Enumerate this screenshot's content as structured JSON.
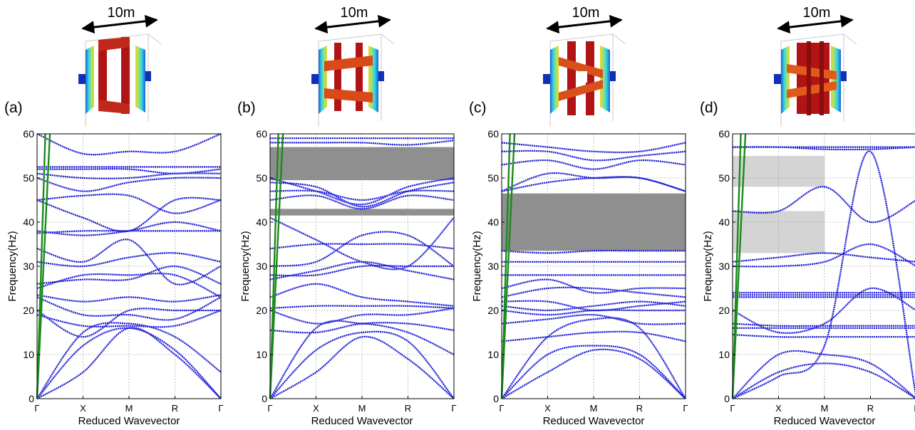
{
  "figure": {
    "scale_label": "10m",
    "frequency_axis_label": "Frequency(Hz)",
    "wavevector_axis_label": "Reduced Wavevector"
  },
  "colors": {
    "band_line": "#1f1fd6",
    "light_cone": "#1a8a1a",
    "full_gap": "#8f8f8f",
    "partial_gap": "#d4d4d4",
    "axes": "#000000",
    "grid": "#9a9a9a",
    "model_body": "#b01414",
    "model_plate_start": "#1e5fd8",
    "model_plate_end": "#f2d21c"
  },
  "chart_data": [
    {
      "panel_label": "(a)",
      "type": "line",
      "xlabel": "Reduced Wavevector",
      "ylabel": "Frequency(Hz)",
      "x_ticks": [
        "Γ",
        "X",
        "M",
        "R",
        "Γ"
      ],
      "ylim": [
        0,
        60
      ],
      "yticks": [
        0,
        10,
        20,
        30,
        40,
        50,
        60
      ],
      "grid": true,
      "light_cone": [
        {
          "x": [
            0,
            0.18
          ],
          "y": [
            0,
            60
          ]
        },
        {
          "x": [
            0,
            0.28
          ],
          "y": [
            0,
            60
          ]
        }
      ],
      "gaps": [],
      "series": [
        {
          "values": [
            0,
            6,
            16,
            10,
            0
          ]
        },
        {
          "values": [
            0,
            12,
            16,
            11,
            0
          ]
        },
        {
          "values": [
            0,
            15,
            17,
            14,
            6
          ]
        },
        {
          "values": [
            19,
            16.5,
            16.5,
            16.5,
            20
          ]
        },
        {
          "values": [
            20,
            14,
            20,
            20,
            20
          ]
        },
        {
          "values": [
            23,
            19,
            19,
            18,
            23
          ]
        },
        {
          "values": [
            23.5,
            22,
            23,
            22,
            23.5
          ]
        },
        {
          "values": [
            25,
            28,
            28,
            28,
            23
          ]
        },
        {
          "values": [
            26,
            27,
            27,
            30,
            26
          ]
        },
        {
          "values": [
            31,
            30,
            32,
            33,
            31
          ]
        },
        {
          "values": [
            34,
            31,
            36,
            26,
            30
          ]
        },
        {
          "values": [
            37.5,
            38,
            38,
            38,
            38
          ]
        },
        {
          "values": [
            38,
            37,
            38,
            40,
            38
          ]
        },
        {
          "values": [
            45,
            41,
            38,
            45,
            45
          ]
        },
        {
          "values": [
            45,
            46,
            46,
            42,
            45
          ]
        },
        {
          "values": [
            50,
            47,
            49,
            50,
            50
          ]
        },
        {
          "values": [
            51,
            50,
            50,
            51,
            51
          ]
        },
        {
          "values": [
            52,
            52,
            52,
            51,
            52
          ]
        },
        {
          "values": [
            52.5,
            52.5,
            52.5,
            52.5,
            52.5
          ]
        },
        {
          "values": [
            60,
            55.5,
            56,
            56,
            60
          ]
        }
      ]
    },
    {
      "panel_label": "(b)",
      "type": "line",
      "xlabel": "Reduced Wavevector",
      "ylabel": "Frequency(Hz)",
      "x_ticks": [
        "Γ",
        "X",
        "M",
        "R",
        "Γ"
      ],
      "ylim": [
        0,
        60
      ],
      "yticks": [
        0,
        10,
        20,
        30,
        40,
        50,
        60
      ],
      "grid": true,
      "light_cone": [
        {
          "x": [
            0,
            0.18
          ],
          "y": [
            0,
            60
          ]
        },
        {
          "x": [
            0,
            0.28
          ],
          "y": [
            0,
            60
          ]
        }
      ],
      "gaps": [
        {
          "y": [
            41.5,
            43
          ],
          "span": [
            0,
            4
          ],
          "kind": "full"
        },
        {
          "y": [
            49.5,
            57
          ],
          "span": [
            0,
            4
          ],
          "kind": "full"
        }
      ],
      "series": [
        {
          "values": [
            0,
            6,
            14,
            9,
            0
          ]
        },
        {
          "values": [
            0,
            11,
            15,
            13,
            0
          ]
        },
        {
          "values": [
            0,
            16,
            17,
            15,
            10
          ]
        },
        {
          "values": [
            15.5,
            15,
            17,
            17,
            15.5
          ]
        },
        {
          "values": [
            20,
            17,
            19,
            19,
            20.5
          ]
        },
        {
          "values": [
            20.5,
            21,
            21,
            21,
            20.5
          ]
        },
        {
          "values": [
            23,
            26,
            23,
            22,
            21
          ]
        },
        {
          "values": [
            27,
            29,
            31,
            29,
            27
          ]
        },
        {
          "values": [
            28,
            28,
            30,
            30,
            30
          ]
        },
        {
          "values": [
            30,
            31,
            37,
            37,
            30
          ]
        },
        {
          "values": [
            34,
            35,
            35,
            35,
            34
          ]
        },
        {
          "values": [
            41,
            36,
            31,
            30,
            41
          ]
        },
        {
          "values": [
            45,
            46,
            43,
            46,
            45
          ]
        },
        {
          "values": [
            47,
            47,
            45,
            47,
            47
          ]
        },
        {
          "values": [
            49,
            48,
            43.5,
            47,
            49
          ]
        },
        {
          "values": [
            50,
            47,
            44,
            48,
            50
          ]
        },
        {
          "values": [
            58,
            58,
            58,
            57.5,
            58.5
          ]
        },
        {
          "values": [
            59,
            59,
            59,
            59,
            59
          ]
        }
      ]
    },
    {
      "panel_label": "(c)",
      "type": "line",
      "xlabel": "Reduced Wavevector",
      "ylabel": "Frequency(Hz)",
      "x_ticks": [
        "Γ",
        "X",
        "M",
        "R",
        "Γ"
      ],
      "ylim": [
        0,
        60
      ],
      "yticks": [
        0,
        10,
        20,
        30,
        40,
        50,
        60
      ],
      "grid": true,
      "light_cone": [
        {
          "x": [
            0,
            0.18
          ],
          "y": [
            0,
            60
          ]
        },
        {
          "x": [
            0,
            0.28
          ],
          "y": [
            0,
            60
          ]
        }
      ],
      "gaps": [
        {
          "y": [
            33.5,
            46.5
          ],
          "span": [
            0,
            4
          ],
          "kind": "full"
        }
      ],
      "series": [
        {
          "values": [
            0,
            6,
            11,
            9,
            0
          ]
        },
        {
          "values": [
            0,
            10,
            12,
            10,
            0
          ]
        },
        {
          "values": [
            0,
            14,
            18,
            16,
            0
          ]
        },
        {
          "values": [
            13,
            14,
            15,
            15,
            13
          ]
        },
        {
          "values": [
            17,
            18,
            19,
            17,
            17
          ]
        },
        {
          "values": [
            20,
            19,
            20,
            20,
            20
          ]
        },
        {
          "values": [
            21,
            20,
            21,
            22,
            21
          ]
        },
        {
          "values": [
            22,
            22,
            20,
            21,
            22
          ]
        },
        {
          "values": [
            23,
            25,
            25,
            24,
            23
          ]
        },
        {
          "values": [
            25,
            27,
            24,
            25,
            25
          ]
        },
        {
          "values": [
            28,
            28,
            28,
            28,
            28
          ]
        },
        {
          "values": [
            31,
            31,
            31,
            31,
            31
          ]
        },
        {
          "values": [
            33.5,
            33,
            33.5,
            33.5,
            33.5
          ]
        },
        {
          "values": [
            47,
            49,
            50,
            50,
            47
          ]
        },
        {
          "values": [
            47,
            51,
            50,
            50,
            47
          ]
        },
        {
          "values": [
            53,
            54,
            52,
            54,
            53
          ]
        },
        {
          "values": [
            56,
            56,
            54,
            55,
            56
          ]
        },
        {
          "values": [
            58,
            57,
            56,
            56,
            58
          ]
        }
      ]
    },
    {
      "panel_label": "(d)",
      "type": "line",
      "xlabel": "Reduced Wavevector",
      "ylabel": "Frequency(Hz)",
      "x_ticks": [
        "Γ",
        "X",
        "M",
        "R",
        "Γ"
      ],
      "ylim": [
        0,
        60
      ],
      "yticks": [
        0,
        10,
        20,
        30,
        40,
        50,
        60
      ],
      "grid": true,
      "light_cone": [
        {
          "x": [
            0,
            0.18
          ],
          "y": [
            0,
            60
          ]
        },
        {
          "x": [
            0,
            0.28
          ],
          "y": [
            0,
            60
          ]
        }
      ],
      "gaps": [
        {
          "y": [
            33,
            42.5
          ],
          "span": [
            0,
            2
          ],
          "kind": "partial"
        },
        {
          "y": [
            48,
            55
          ],
          "span": [
            0,
            2
          ],
          "kind": "partial"
        }
      ],
      "series": [
        {
          "values": [
            0,
            6,
            8,
            6,
            0
          ]
        },
        {
          "values": [
            0,
            10,
            10,
            8,
            0
          ]
        },
        {
          "values": [
            0,
            5,
            12,
            56,
            0
          ]
        },
        {
          "values": [
            14.5,
            14,
            14,
            14,
            14
          ]
        },
        {
          "values": [
            16,
            16,
            16,
            16,
            16
          ]
        },
        {
          "values": [
            17,
            16.5,
            16.5,
            16.5,
            16.5
          ]
        },
        {
          "values": [
            20,
            15,
            17,
            25,
            20
          ]
        },
        {
          "values": [
            23,
            23,
            23,
            23,
            23
          ]
        },
        {
          "values": [
            23.5,
            23.5,
            23.5,
            23.5,
            23.5
          ]
        },
        {
          "values": [
            24,
            24,
            24,
            24,
            24
          ]
        },
        {
          "values": [
            30,
            30,
            31,
            35,
            30
          ]
        },
        {
          "values": [
            31,
            32,
            33,
            32,
            31
          ]
        },
        {
          "values": [
            42.5,
            42.5,
            48,
            40,
            45
          ]
        },
        {
          "values": [
            57,
            57,
            57,
            57,
            57
          ]
        },
        {
          "values": [
            57,
            57,
            56.5,
            56.5,
            57
          ]
        }
      ]
    }
  ]
}
